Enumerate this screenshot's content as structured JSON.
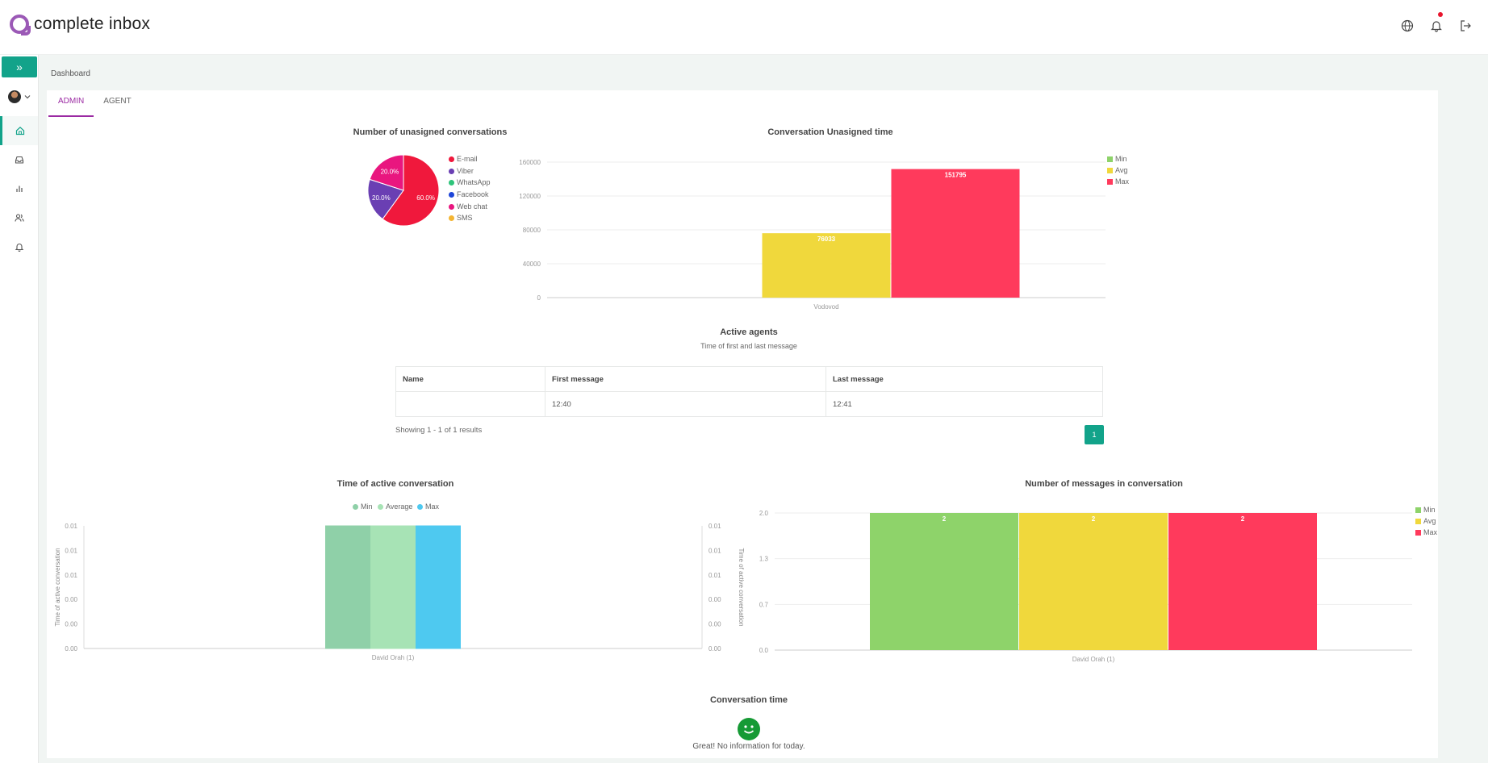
{
  "app": {
    "name": "complete inbox"
  },
  "breadcrumb": "Dashboard",
  "tabs": [
    {
      "label": "ADMIN",
      "active": true
    },
    {
      "label": "AGENT",
      "active": false
    }
  ],
  "colors": {
    "accent": "#12a38a",
    "tab_active": "#9b2aa3",
    "brand": "#9b59b6"
  },
  "icons": {
    "top": [
      "globe-icon",
      "bell-icon",
      "logout-icon"
    ],
    "nav": [
      "home-icon",
      "inbox-icon",
      "bar-chart-icon",
      "users-icon",
      "bell-icon"
    ]
  },
  "pie": {
    "title": "Number of unasigned conversations",
    "legend": [
      "E-mail",
      "Viber",
      "WhatsApp",
      "Facebook",
      "Web chat",
      "SMS"
    ],
    "legend_colors": [
      "#f0183c",
      "#6a3fb3",
      "#2ec47a",
      "#1d45d8",
      "#e9167f",
      "#f4b533"
    ]
  },
  "unassigned_time": {
    "title": "Conversation Unasigned time",
    "legend": [
      "Min",
      "Avg",
      "Max"
    ]
  },
  "active_agents": {
    "title": "Active agents",
    "subtitle": "Time of first and last message",
    "columns": [
      "Name",
      "First message",
      "Last message"
    ],
    "rows": [
      {
        "name": "",
        "first": "12:40",
        "last": "12:41"
      }
    ],
    "showing": "Showing 1 - 1 of 1 results",
    "page": "1"
  },
  "active_conv": {
    "title": "Time of active conversation",
    "legend": [
      "Min",
      "Average",
      "Max"
    ],
    "axis_label": "Time of active conversation"
  },
  "messages": {
    "title": "Number of messages in conversation",
    "legend": [
      "Min",
      "Avg",
      "Max"
    ]
  },
  "conv_time": {
    "title": "Conversation time",
    "message": "Great! No information for today."
  },
  "chart_data": [
    {
      "type": "pie",
      "title": "Number of unasigned conversations",
      "labels": [
        "E-mail",
        "Viber",
        "WhatsApp",
        "Facebook",
        "Web chat",
        "SMS"
      ],
      "values": [
        60.0,
        20.0,
        0,
        0,
        20.0,
        0
      ],
      "slice_labels": [
        "60.0%",
        "20.0%",
        "",
        "",
        "20.0%",
        ""
      ],
      "colors": [
        "#f0183c",
        "#6a3fb3",
        "#2ec47a",
        "#1d45d8",
        "#e9167f",
        "#f4b533"
      ]
    },
    {
      "type": "bar",
      "title": "Conversation Unasigned time",
      "categories": [
        "Vodovod"
      ],
      "series": [
        {
          "name": "Min",
          "values": [
            0
          ],
          "color": "#8ed36a"
        },
        {
          "name": "Avg",
          "values": [
            76033
          ],
          "color": "#f0d83c"
        },
        {
          "name": "Max",
          "values": [
            151795
          ],
          "color": "#ff3a5c"
        }
      ],
      "data_labels": [
        "",
        "76033",
        "151795"
      ],
      "ylim": [
        0,
        160000
      ],
      "yticks": [
        "0",
        "40000",
        "80000",
        "120000",
        "160000"
      ],
      "legend": "top-right",
      "grid": true
    },
    {
      "type": "bar",
      "title": "Time of active conversation",
      "categories": [
        "David Orah (1)"
      ],
      "series": [
        {
          "name": "Min",
          "values": [
            0.01
          ],
          "color": "#8fd0a8"
        },
        {
          "name": "Average",
          "values": [
            0.01
          ],
          "color": "#a7e3b5"
        },
        {
          "name": "Max",
          "values": [
            0.01
          ],
          "color": "#4ec9f0"
        }
      ],
      "ylabel": "Time of active conversation",
      "yticks": [
        "0.00",
        "0.00",
        "0.00",
        "0.01",
        "0.01",
        "0.01"
      ],
      "legend": "top-center"
    },
    {
      "type": "bar",
      "title": "Number of messages in conversation",
      "categories": [
        "David Orah (1)"
      ],
      "series": [
        {
          "name": "Min",
          "values": [
            2
          ],
          "color": "#8ed36a"
        },
        {
          "name": "Avg",
          "values": [
            2
          ],
          "color": "#f0d83c"
        },
        {
          "name": "Max",
          "values": [
            2
          ],
          "color": "#ff3a5c"
        }
      ],
      "data_labels": [
        "2",
        "2",
        "2"
      ],
      "ylim": [
        0,
        2
      ],
      "yticks": [
        "0.0",
        "0.7",
        "1.3",
        "2.0"
      ],
      "legend": "top-right",
      "grid": true
    }
  ]
}
